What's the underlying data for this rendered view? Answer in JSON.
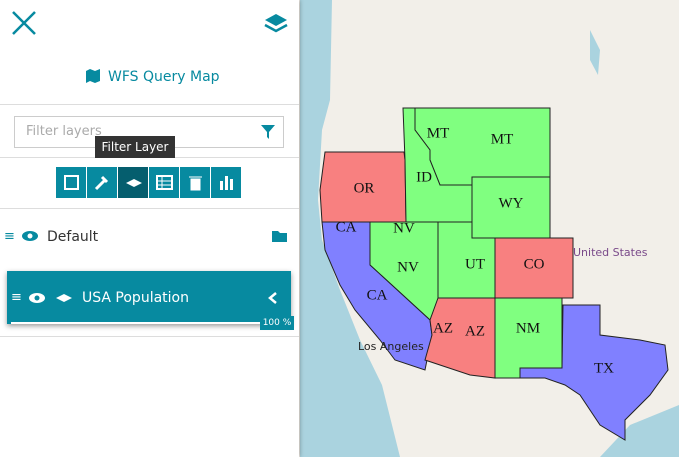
{
  "sidebar": {
    "title": "WFS Query Map",
    "filter_placeholder": "Filter layers",
    "tooltip": "Filter Layer",
    "layers": [
      {
        "name": "Default"
      },
      {
        "name": "USA Population",
        "progress": "100 %"
      }
    ]
  },
  "map": {
    "labels": [
      "MT",
      "MT",
      "OR",
      "ID",
      "WY",
      "CA",
      "CA",
      "NV",
      "NV",
      "UT",
      "CO",
      "AZ",
      "AZ",
      "NM",
      "TX"
    ],
    "places": [
      "United States",
      "Los Angeles"
    ]
  }
}
